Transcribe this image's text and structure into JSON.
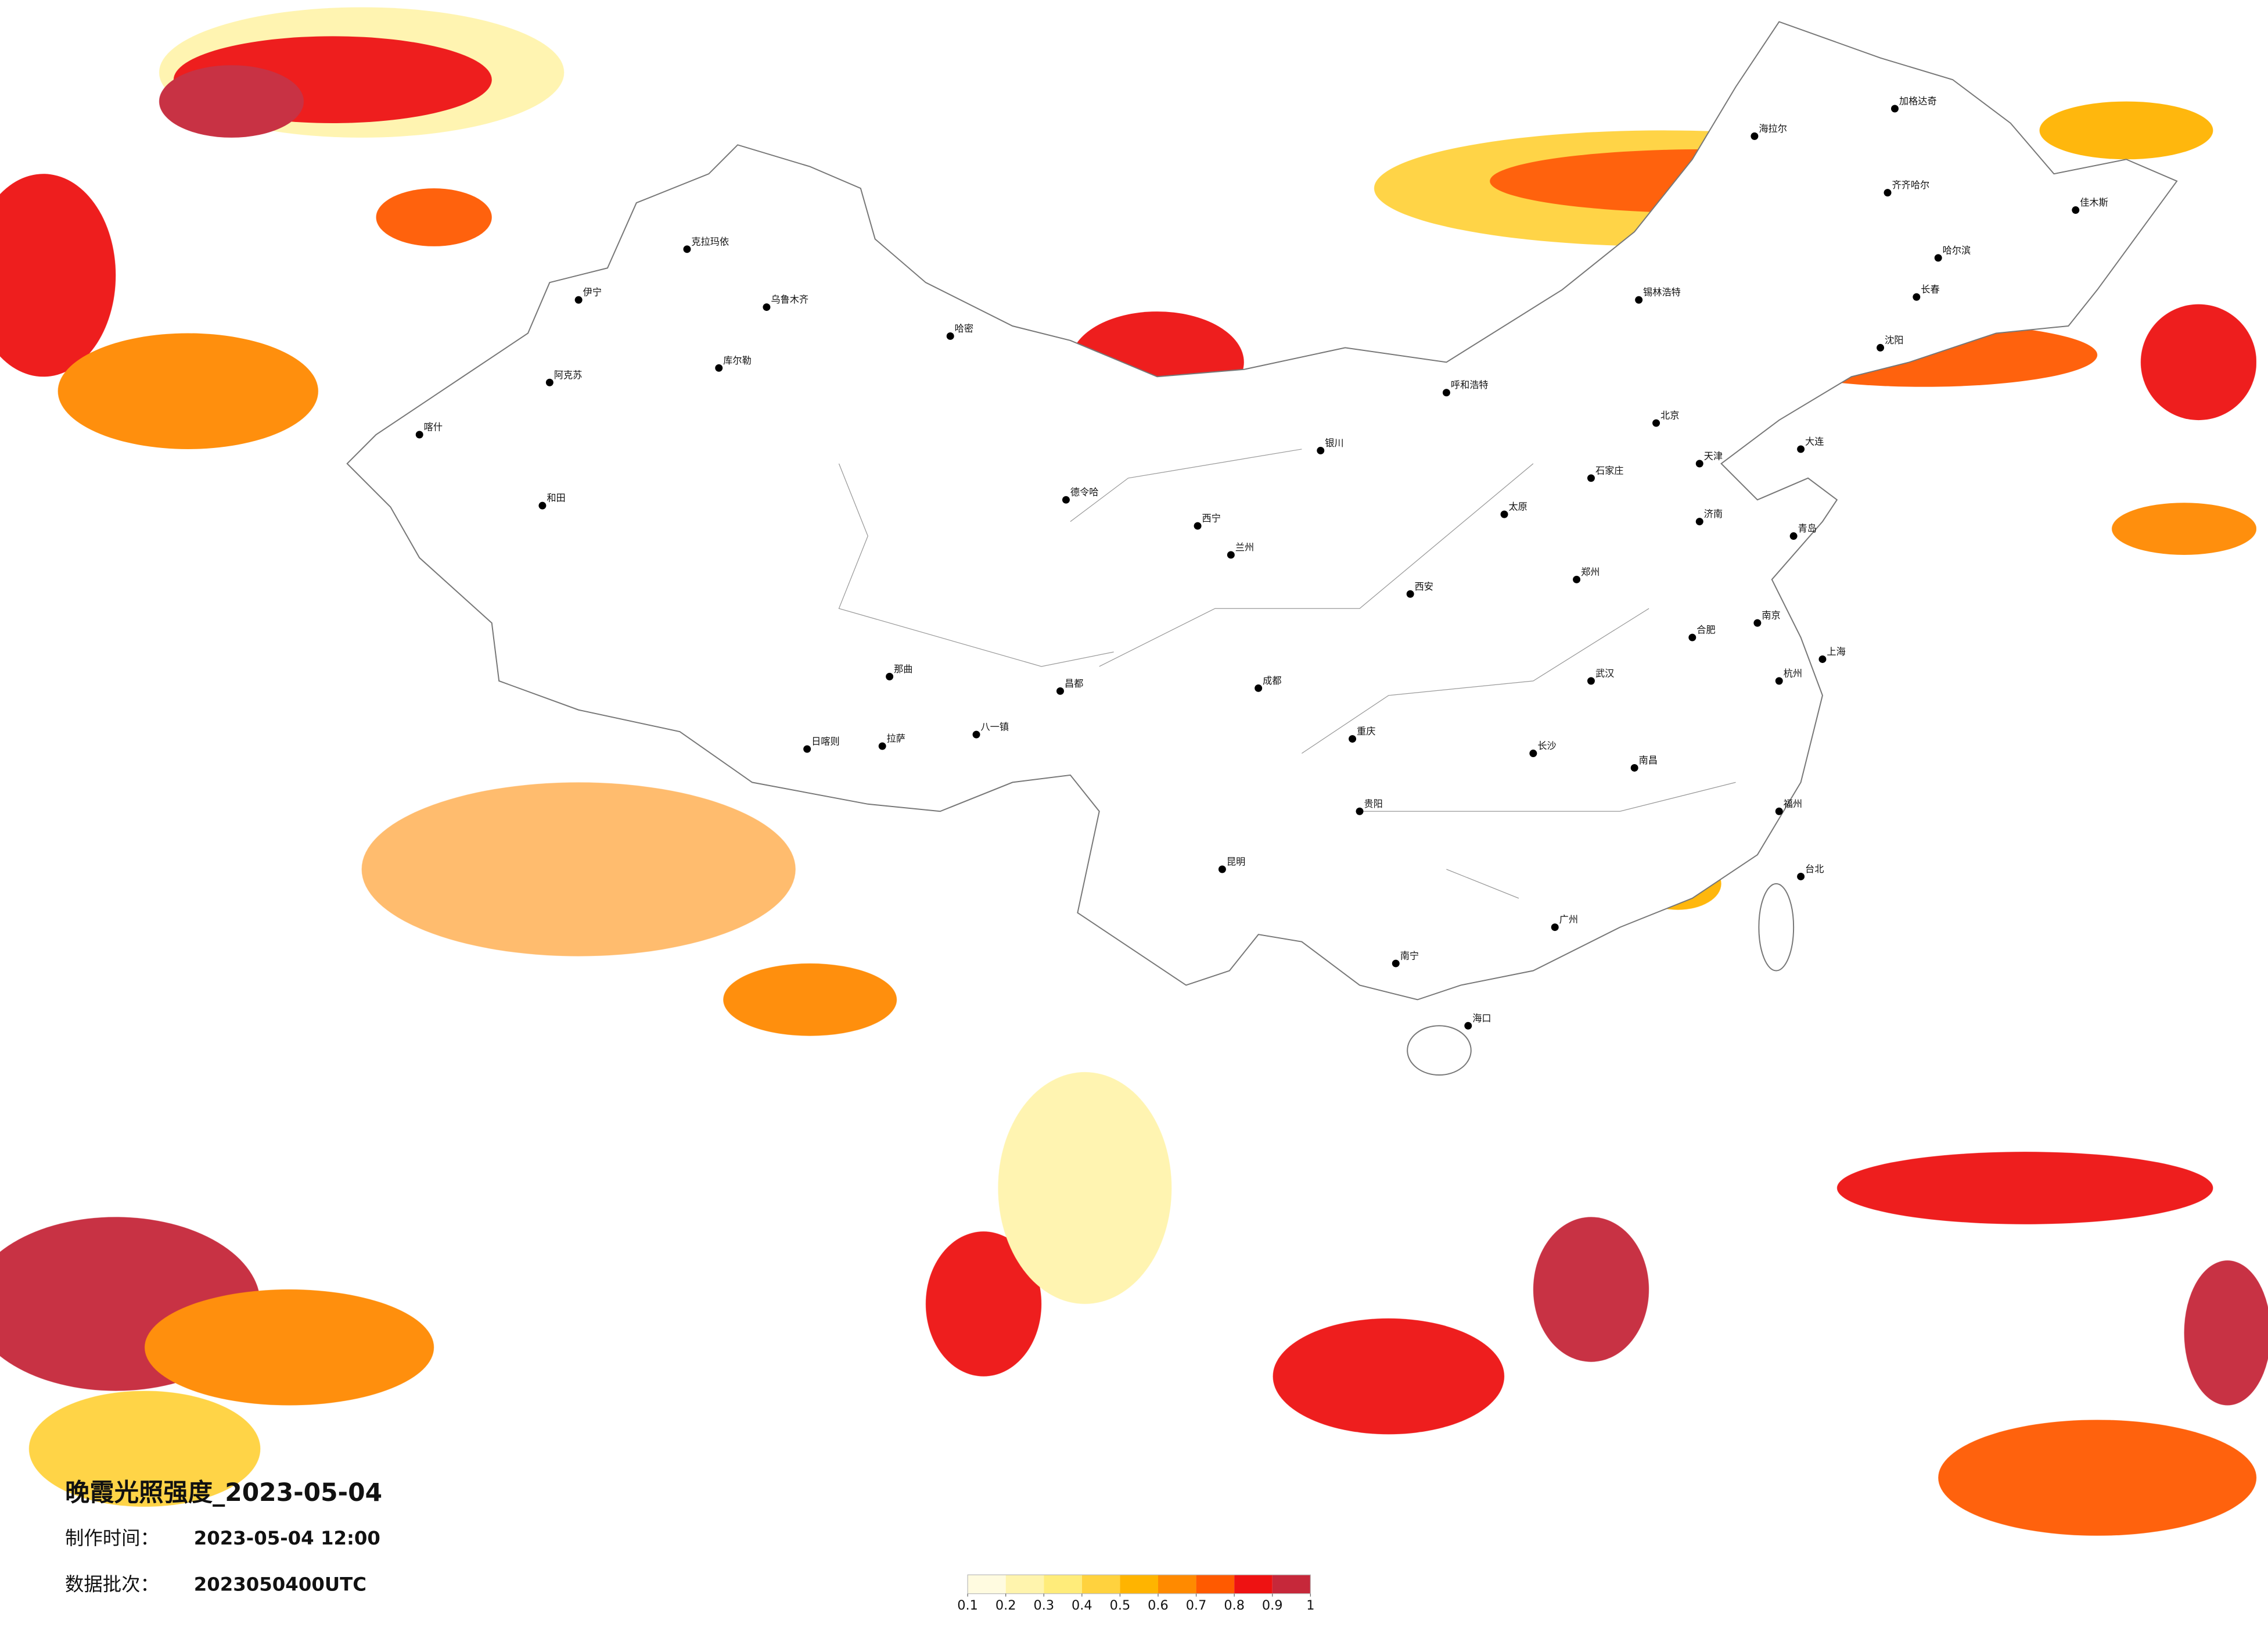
{
  "header": {
    "title": "晚霞光照强度_2023-05-04",
    "made_time_label": "制作时间：",
    "made_time": "2023-05-04 12:00",
    "batch_label": "数据批次：",
    "batch": "2023050400UTC"
  },
  "legend": {
    "ticks": [
      0.1,
      0.2,
      0.3,
      0.4,
      0.5,
      0.6,
      0.7,
      0.8,
      0.9,
      1
    ],
    "colors": [
      "#fffbe0",
      "#fff4ad",
      "#ffec7a",
      "#ffd23e",
      "#ffb400",
      "#ff8a00",
      "#ff5a00",
      "#ee1212",
      "#c6283a"
    ]
  },
  "cities": [
    "克拉玛依",
    "乌鲁木齐",
    "伊宁",
    "阿克苏",
    "喀什",
    "和田",
    "哈密",
    "库尔勒",
    "德令哈",
    "西宁",
    "兰州",
    "拉萨",
    "日喀则",
    "八一镇",
    "那曲",
    "昌都",
    "银川",
    "呼和浩特",
    "锡林浩特",
    "北京",
    "天津",
    "石家庄",
    "太原",
    "济南",
    "青岛",
    "郑州",
    "西安",
    "武汉",
    "合肥",
    "南京",
    "上海",
    "杭州",
    "福州",
    "南昌",
    "长沙",
    "广州",
    "南宁",
    "海口",
    "贵阳",
    "昆明",
    "成都",
    "重庆",
    "台北",
    "加格达奇",
    "海拉尔",
    "齐齐哈尔",
    "哈尔滨",
    "长春",
    "沈阳",
    "大连",
    "佳木斯"
  ]
}
